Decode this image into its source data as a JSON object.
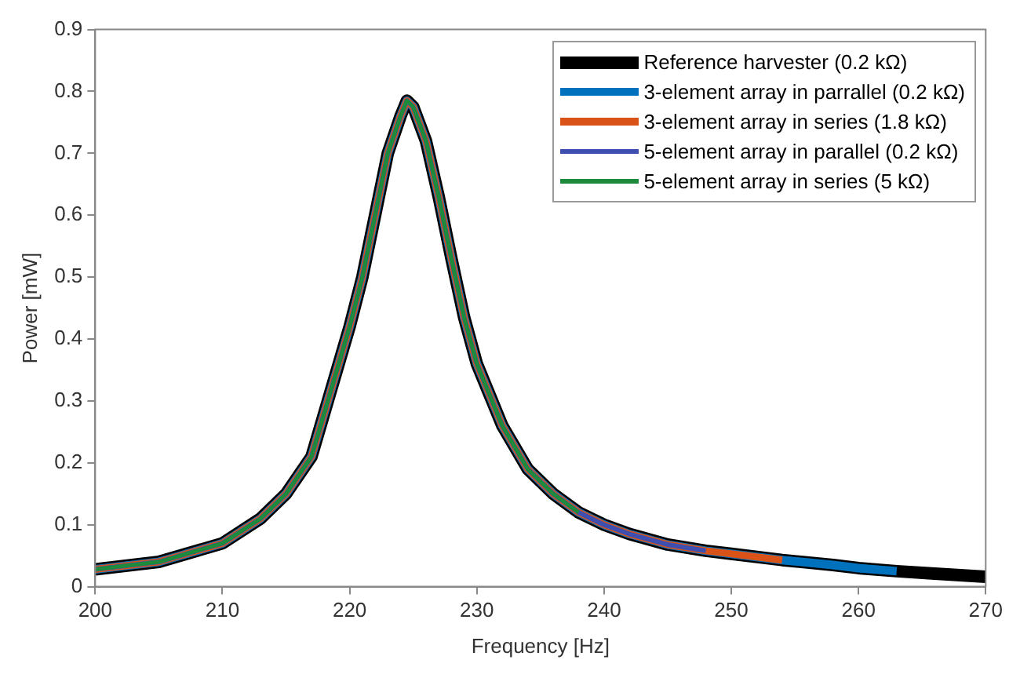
{
  "chart_data": {
    "type": "line",
    "xlabel": "Frequency [Hz]",
    "ylabel": "Power [mW]",
    "xlim": [
      200,
      270
    ],
    "xticks": [
      200,
      210,
      220,
      230,
      240,
      250,
      260,
      270
    ],
    "ylim": [
      0,
      0.9
    ],
    "yticks": [
      0,
      0.1,
      0.2,
      0.3,
      0.4,
      0.5,
      0.6,
      0.7,
      0.8,
      0.9
    ],
    "grid": false,
    "legend": "top right",
    "marker": "none",
    "line_style": "solid",
    "series": [
      {
        "name": "Reference harvester (0.2 kΩ)",
        "color": "#000000",
        "x": [
          200,
          205,
          210,
          213,
          215,
          217,
          219,
          220,
          221,
          222,
          223,
          224,
          224.5,
          225,
          226,
          227,
          228,
          229,
          230,
          232,
          234,
          236,
          238,
          240,
          242,
          245,
          248,
          250,
          254,
          258,
          260,
          263,
          266,
          270
        ],
        "values": [
          0.028,
          0.04,
          0.07,
          0.11,
          0.15,
          0.21,
          0.35,
          0.42,
          0.5,
          0.6,
          0.7,
          0.76,
          0.785,
          0.775,
          0.72,
          0.63,
          0.53,
          0.435,
          0.36,
          0.26,
          0.19,
          0.15,
          0.12,
          0.1,
          0.085,
          0.068,
          0.058,
          0.053,
          0.043,
          0.035,
          0.03,
          0.025,
          0.021,
          0.016
        ]
      },
      {
        "name": "3-element array in parrallel (0.2 kΩ)",
        "color": "#0072bd",
        "x": [
          200,
          205,
          210,
          213,
          215,
          217,
          219,
          220,
          221,
          222,
          223,
          224,
          224.5,
          225,
          226,
          227,
          228,
          229,
          230,
          232,
          234,
          236,
          238,
          240,
          242,
          245,
          248,
          250,
          254,
          258,
          260,
          263
        ],
        "values": [
          0.028,
          0.04,
          0.07,
          0.11,
          0.15,
          0.21,
          0.35,
          0.42,
          0.5,
          0.6,
          0.7,
          0.76,
          0.785,
          0.775,
          0.72,
          0.63,
          0.53,
          0.435,
          0.36,
          0.26,
          0.19,
          0.15,
          0.12,
          0.1,
          0.085,
          0.068,
          0.058,
          0.053,
          0.043,
          0.035,
          0.03,
          0.025
        ]
      },
      {
        "name": "3-element array in series (1.8 kΩ)",
        "color": "#d95319",
        "x": [
          200,
          205,
          210,
          213,
          215,
          217,
          219,
          220,
          221,
          222,
          223,
          224,
          224.5,
          225,
          226,
          227,
          228,
          229,
          230,
          232,
          234,
          236,
          238,
          240,
          242,
          245,
          248,
          250,
          254
        ],
        "values": [
          0.028,
          0.04,
          0.07,
          0.11,
          0.15,
          0.21,
          0.35,
          0.42,
          0.5,
          0.6,
          0.7,
          0.76,
          0.785,
          0.775,
          0.72,
          0.63,
          0.53,
          0.435,
          0.36,
          0.26,
          0.19,
          0.15,
          0.12,
          0.1,
          0.085,
          0.068,
          0.058,
          0.053,
          0.043
        ]
      },
      {
        "name": "5-element array in parallel (0.2 kΩ)",
        "color": "#3f4fb0",
        "x": [
          200,
          205,
          210,
          213,
          215,
          217,
          219,
          220,
          221,
          222,
          223,
          224,
          224.5,
          225,
          226,
          227,
          228,
          229,
          230,
          232,
          234,
          236,
          238,
          240,
          242,
          245,
          248
        ],
        "values": [
          0.028,
          0.04,
          0.07,
          0.11,
          0.15,
          0.21,
          0.35,
          0.42,
          0.5,
          0.6,
          0.7,
          0.76,
          0.785,
          0.775,
          0.72,
          0.63,
          0.53,
          0.435,
          0.36,
          0.26,
          0.19,
          0.15,
          0.12,
          0.1,
          0.085,
          0.068,
          0.058
        ]
      },
      {
        "name": "5-element array in series (5 kΩ)",
        "color": "#1e8a3c",
        "x": [
          200,
          205,
          210,
          213,
          215,
          217,
          219,
          220,
          221,
          222,
          223,
          224,
          224.5,
          225,
          226,
          227,
          228,
          229,
          230,
          232,
          234,
          236,
          238
        ],
        "values": [
          0.028,
          0.04,
          0.07,
          0.11,
          0.15,
          0.21,
          0.35,
          0.42,
          0.5,
          0.6,
          0.7,
          0.76,
          0.785,
          0.775,
          0.72,
          0.63,
          0.53,
          0.435,
          0.36,
          0.26,
          0.19,
          0.15,
          0.12
        ]
      }
    ]
  }
}
